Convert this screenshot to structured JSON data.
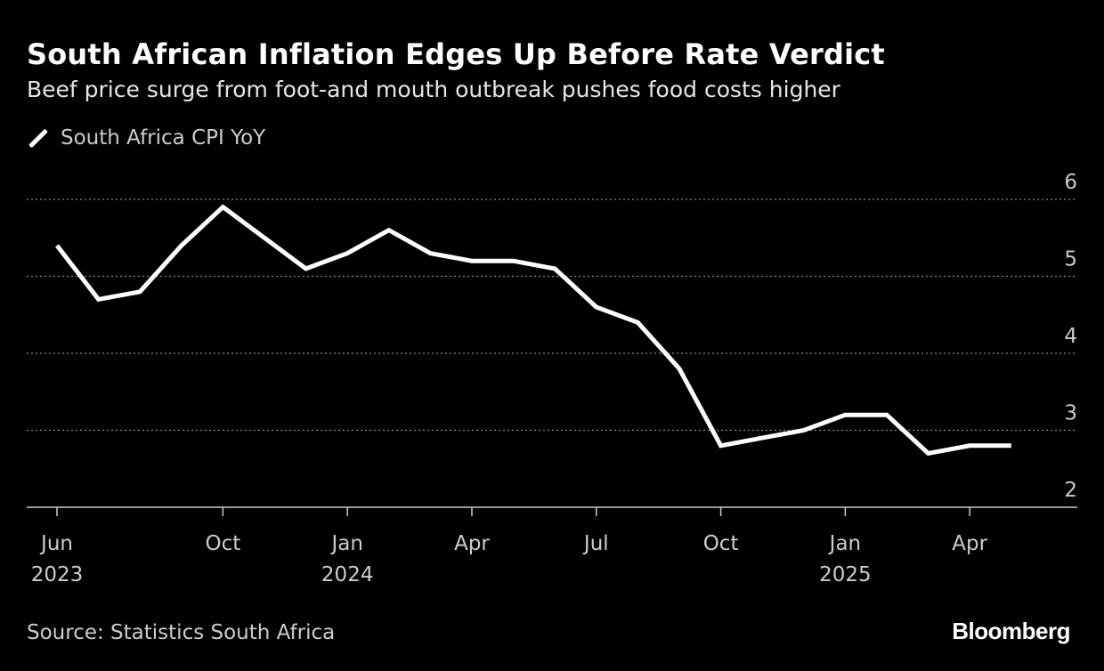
{
  "chart_data": {
    "type": "line",
    "title": "South African Inflation Edges Up Before Rate Verdict",
    "subtitle": "Beef price surge from foot-and mouth outbreak pushes food costs higher",
    "series": [
      {
        "name": "South Africa CPI YoY",
        "color": "#ffffff",
        "x": [
          "2023-06",
          "2023-07",
          "2023-08",
          "2023-09",
          "2023-10",
          "2023-11",
          "2023-12",
          "2024-01",
          "2024-02",
          "2024-03",
          "2024-04",
          "2024-05",
          "2024-06",
          "2024-07",
          "2024-08",
          "2024-09",
          "2024-10",
          "2024-11",
          "2024-12",
          "2025-01",
          "2025-02",
          "2025-03",
          "2025-04",
          "2025-05"
        ],
        "values": [
          5.4,
          4.7,
          4.8,
          5.4,
          5.9,
          5.5,
          5.1,
          5.3,
          5.6,
          5.3,
          5.2,
          5.2,
          5.1,
          4.6,
          4.4,
          3.8,
          2.8,
          2.9,
          3.0,
          3.2,
          3.2,
          2.7,
          2.8,
          2.8
        ]
      }
    ],
    "x_ticks": [
      {
        "month": "2023-06",
        "label": "Jun",
        "year": "2023"
      },
      {
        "month": "2023-10",
        "label": "Oct",
        "year": ""
      },
      {
        "month": "2024-01",
        "label": "Jan",
        "year": "2024"
      },
      {
        "month": "2024-04",
        "label": "Apr",
        "year": ""
      },
      {
        "month": "2024-07",
        "label": "Jul",
        "year": ""
      },
      {
        "month": "2024-10",
        "label": "Oct",
        "year": ""
      },
      {
        "month": "2025-01",
        "label": "Jan",
        "year": "2025"
      },
      {
        "month": "2025-04",
        "label": "Apr",
        "year": ""
      }
    ],
    "y_ticks": [
      "2",
      "3",
      "4",
      "5",
      "6"
    ],
    "ylim": [
      2,
      6
    ],
    "y_axis_position": "right",
    "grid": "horizontal dotted",
    "legend_position": "top-left",
    "source": "Source: Statistics South Africa",
    "brand": "Bloomberg"
  }
}
